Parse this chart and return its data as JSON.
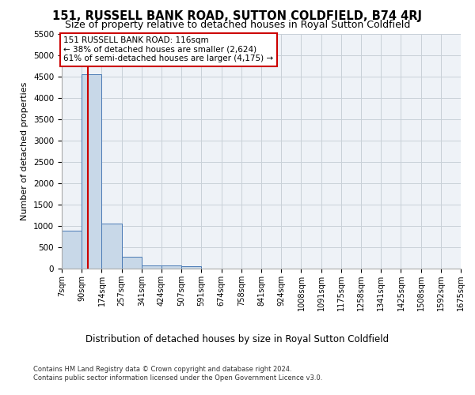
{
  "title": "151, RUSSELL BANK ROAD, SUTTON COLDFIELD, B74 4RJ",
  "subtitle": "Size of property relative to detached houses in Royal Sutton Coldfield",
  "xlabel": "Distribution of detached houses by size in Royal Sutton Coldfield",
  "ylabel": "Number of detached properties",
  "footer1": "Contains HM Land Registry data © Crown copyright and database right 2024.",
  "footer2": "Contains public sector information licensed under the Open Government Licence v3.0.",
  "annotation_title": "151 RUSSELL BANK ROAD: 116sqm",
  "annotation_line1": "← 38% of detached houses are smaller (2,624)",
  "annotation_line2": "61% of semi-detached houses are larger (4,175) →",
  "property_size": 116,
  "bar_edges": [
    7,
    90,
    174,
    257,
    341,
    424,
    507,
    591,
    674,
    758,
    841,
    924,
    1008,
    1091,
    1175,
    1258,
    1341,
    1425,
    1508,
    1592,
    1675
  ],
  "bar_heights": [
    880,
    4550,
    1060,
    270,
    80,
    75,
    50,
    0,
    0,
    0,
    0,
    0,
    0,
    0,
    0,
    0,
    0,
    0,
    0,
    0
  ],
  "bar_color": "#c8d8e8",
  "bar_edge_color": "#4a7ab5",
  "vline_color": "#cc0000",
  "vline_x": 116,
  "annotation_box_color": "#cc0000",
  "annotation_bg_color": "#ffffff",
  "ylim": [
    0,
    5500
  ],
  "yticks": [
    0,
    500,
    1000,
    1500,
    2000,
    2500,
    3000,
    3500,
    4000,
    4500,
    5000,
    5500
  ],
  "grid_color": "#c8d0d8",
  "bg_color": "#eef2f7",
  "title_fontsize": 10.5,
  "subtitle_fontsize": 9,
  "ylabel_fontsize": 8,
  "xlabel_fontsize": 8.5,
  "tick_fontsize": 7,
  "annotation_fontsize": 7.5,
  "footer_fontsize": 6
}
